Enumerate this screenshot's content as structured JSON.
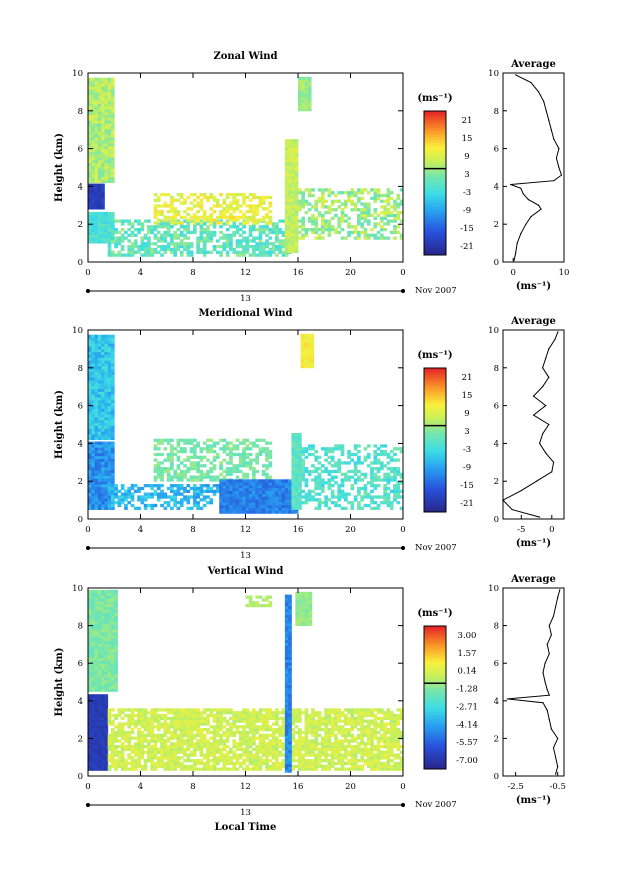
{
  "chart_data": [
    {
      "type": "heatmap",
      "title": "Zonal Wind",
      "xlabel": "",
      "ylabel": "Height (km)",
      "xlim": [
        0,
        24
      ],
      "ylim": [
        0,
        10
      ],
      "x_ticks": [
        "0",
        "4",
        "8",
        "12",
        "16",
        "20",
        "0"
      ],
      "y_ticks": [
        "0",
        "2",
        "4",
        "6",
        "8",
        "10"
      ],
      "date_tick": "13",
      "date_label": "Nov 2007",
      "colorbar": {
        "unit": "(ms⁻¹)",
        "ticks": [
          "21",
          "15",
          "9",
          "3",
          "-3",
          "-9",
          "-15",
          "-21"
        ]
      },
      "average": {
        "title": "Average",
        "xlabel": "(ms⁻¹)",
        "xlim": [
          -2,
          10
        ],
        "x_ticks": [
          "0",
          "10"
        ],
        "y_ticks": [
          "0",
          "2",
          "4",
          "6",
          "8",
          "10"
        ],
        "height": [
          0.1,
          0.5,
          1.0,
          1.5,
          2.0,
          2.4,
          2.8,
          3.0,
          3.3,
          3.6,
          3.9,
          4.1,
          4.3,
          4.6,
          5.0,
          5.5,
          6.0,
          6.5,
          7.0,
          7.5,
          8.0,
          8.5,
          9.0,
          9.5,
          9.9
        ],
        "value": [
          0.2,
          0.5,
          0.8,
          1.5,
          2.5,
          3.5,
          5.5,
          5.0,
          3.0,
          2.0,
          1.5,
          -0.5,
          8.0,
          9.5,
          9.0,
          8.5,
          9.0,
          8.0,
          7.5,
          7.0,
          6.5,
          6.0,
          5.0,
          3.5,
          0.5
        ]
      }
    },
    {
      "type": "heatmap",
      "title": "Meridional Wind",
      "xlabel": "",
      "ylabel": "Height (km)",
      "xlim": [
        0,
        24
      ],
      "ylim": [
        0,
        10
      ],
      "x_ticks": [
        "0",
        "4",
        "8",
        "12",
        "16",
        "20",
        "0"
      ],
      "y_ticks": [
        "0",
        "2",
        "4",
        "6",
        "8",
        "10"
      ],
      "date_tick": "13",
      "date_label": "Nov 2007",
      "colorbar": {
        "unit": "(ms⁻¹)",
        "ticks": [
          "21",
          "15",
          "9",
          "3",
          "-3",
          "-9",
          "-15",
          "-21"
        ]
      },
      "average": {
        "title": "Average",
        "xlabel": "(ms⁻¹)",
        "xlim": [
          -8,
          2
        ],
        "x_ticks": [
          "-5",
          "0"
        ],
        "y_ticks": [
          "0",
          "2",
          "4",
          "6",
          "8",
          "10"
        ],
        "height": [
          0.1,
          0.5,
          1.0,
          1.5,
          2.0,
          2.5,
          3.0,
          3.5,
          4.0,
          4.5,
          5.0,
          5.5,
          6.0,
          6.5,
          7.0,
          7.5,
          8.0,
          8.5,
          9.0,
          9.5,
          9.9
        ],
        "value": [
          -2.0,
          -6.5,
          -8.0,
          -5.0,
          -2.5,
          0.0,
          0.3,
          -1.0,
          -2.0,
          -1.5,
          -0.5,
          -3.0,
          -1.0,
          -3.0,
          -1.5,
          -0.5,
          -1.5,
          -1.0,
          -0.5,
          0.5,
          1.0
        ]
      }
    },
    {
      "type": "heatmap",
      "title": "Vertical Wind",
      "xlabel": "Local Time",
      "ylabel": "Height (km)",
      "xlim": [
        0,
        24
      ],
      "ylim": [
        0,
        10
      ],
      "x_ticks": [
        "0",
        "4",
        "8",
        "12",
        "16",
        "20",
        "0"
      ],
      "y_ticks": [
        "0",
        "2",
        "4",
        "6",
        "8",
        "10"
      ],
      "date_tick": "13",
      "date_label": "Nov 2007",
      "colorbar": {
        "unit": "(ms⁻¹)",
        "ticks": [
          "3.00",
          "1.57",
          "0.14",
          "-1.28",
          "-2.71",
          "-4.14",
          "-5.57",
          "-7.00"
        ]
      },
      "average": {
        "title": "Average",
        "xlabel": "(ms⁻¹)",
        "xlim": [
          -3.1,
          -0.2
        ],
        "x_ticks": [
          "-2.5",
          "-0.5"
        ],
        "y_ticks": [
          "0",
          "2",
          "4",
          "6",
          "8",
          "10"
        ],
        "height": [
          0.1,
          0.5,
          1.0,
          1.5,
          2.0,
          2.5,
          3.0,
          3.5,
          3.9,
          4.1,
          4.3,
          4.6,
          5.0,
          5.5,
          6.0,
          6.5,
          7.0,
          7.5,
          8.0,
          8.5,
          9.0,
          9.5,
          9.9
        ],
        "value": [
          -0.6,
          -0.5,
          -0.6,
          -0.7,
          -0.5,
          -0.8,
          -0.9,
          -1.0,
          -1.2,
          -2.9,
          -0.9,
          -1.0,
          -1.1,
          -1.2,
          -1.1,
          -0.9,
          -1.0,
          -0.8,
          -0.9,
          -0.7,
          -0.6,
          -0.5,
          -0.4
        ]
      }
    }
  ]
}
